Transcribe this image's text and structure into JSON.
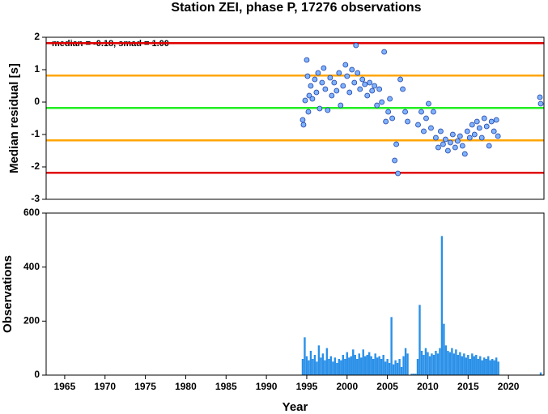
{
  "chart_data": [
    {
      "type": "scatter",
      "title": "Station ZEI, phase P, 17276 observations",
      "ylabel": "Median residual [s]",
      "annotation": "median = -0.18, smad = 1.00",
      "point_color": "#7fb2ff",
      "point_edge": "#1f3f9f",
      "xlim": [
        1962.7,
        2024.4
      ],
      "ylim": [
        -3,
        2
      ],
      "yticks": [
        -3,
        -2,
        -1,
        0,
        1,
        2
      ],
      "reference_lines": [
        {
          "value": 1.82,
          "color": "#e00000"
        },
        {
          "value": 0.82,
          "color": "#ffa500"
        },
        {
          "value": -0.18,
          "color": "#22ee22"
        },
        {
          "value": -1.18,
          "color": "#ffa500"
        },
        {
          "value": -2.18,
          "color": "#e00000"
        }
      ],
      "x": [
        1994.5,
        1994.6,
        1994.8,
        1995,
        1995.1,
        1995.2,
        1995.3,
        1995.5,
        1995.7,
        1996,
        1996.2,
        1996.4,
        1996.6,
        1996.9,
        1997.1,
        1997.3,
        1997.6,
        1997.9,
        1998.1,
        1998.4,
        1998.7,
        1999,
        1999.2,
        1999.5,
        1999.8,
        2000,
        2000.3,
        2000.6,
        2000.9,
        2001.1,
        2001.3,
        2001.6,
        2001.9,
        2002.2,
        2002.5,
        2002.8,
        2003.1,
        2003.4,
        2003.7,
        2004,
        2004.3,
        2004.6,
        2004.8,
        2005.1,
        2005.3,
        2005.6,
        2005.9,
        2006.1,
        2006.3,
        2006.6,
        2006.9,
        2007.2,
        2007.5,
        2008.8,
        2009.2,
        2009.5,
        2009.8,
        2010.1,
        2010.4,
        2010.7,
        2011,
        2011.3,
        2011.6,
        2011.9,
        2012.2,
        2012.5,
        2012.8,
        2013.1,
        2013.4,
        2013.7,
        2014,
        2014.3,
        2014.6,
        2014.9,
        2015.2,
        2015.5,
        2015.8,
        2016.1,
        2016.4,
        2016.7,
        2017,
        2017.3,
        2017.6,
        2017.9,
        2018.2,
        2018.5,
        2018.7,
        2023.9,
        2024
      ],
      "values": [
        -0.55,
        -0.7,
        0.05,
        1.3,
        0.8,
        -0.3,
        0.2,
        0.5,
        0.1,
        0.7,
        0.3,
        0.9,
        -0.2,
        0.6,
        1.05,
        0.4,
        -0.25,
        0.75,
        0.2,
        0.6,
        0.35,
        0.9,
        -0.1,
        0.5,
        1.15,
        0.8,
        0.3,
        1.0,
        0.6,
        1.75,
        0.9,
        0.4,
        0.7,
        0.55,
        0.2,
        0.6,
        0.35,
        0.5,
        -0.1,
        0.4,
        0.0,
        1.55,
        -0.6,
        -0.3,
        0.1,
        -0.5,
        -1.8,
        -1.3,
        -2.2,
        0.7,
        0.4,
        -0.3,
        -0.6,
        -0.7,
        -0.3,
        -0.9,
        -0.5,
        -0.05,
        -0.8,
        -0.3,
        -1.1,
        -1.4,
        -0.9,
        -1.3,
        -1.15,
        -1.5,
        -1.25,
        -1.0,
        -1.4,
        -1.2,
        -1.05,
        -1.35,
        -1.6,
        -0.9,
        -1.1,
        -0.7,
        -1.0,
        -0.6,
        -0.8,
        -1.1,
        -0.5,
        -0.75,
        -1.35,
        -0.6,
        -0.9,
        -0.55,
        -1.05,
        0.15,
        -0.05
      ]
    },
    {
      "type": "bar",
      "xlabel": "Year",
      "ylabel": "Observations",
      "color": "#2a90e8",
      "xlim": [
        1962.7,
        2024.4
      ],
      "xticks": [
        1965,
        1970,
        1975,
        1980,
        1985,
        1990,
        1995,
        2000,
        2005,
        2010,
        2015,
        2020
      ],
      "ylim": [
        0,
        600
      ],
      "yticks": [
        0,
        200,
        400,
        600
      ],
      "x": [
        1994.5,
        1994.75,
        1995,
        1995.25,
        1995.5,
        1995.75,
        1996,
        1996.25,
        1996.5,
        1996.75,
        1997,
        1997.25,
        1997.5,
        1997.75,
        1998,
        1998.25,
        1998.5,
        1998.75,
        1999,
        1999.25,
        1999.5,
        1999.75,
        2000,
        2000.25,
        2000.5,
        2000.75,
        2001,
        2001.25,
        2001.5,
        2001.75,
        2002,
        2002.25,
        2002.5,
        2002.75,
        2003,
        2003.25,
        2003.5,
        2003.75,
        2004,
        2004.25,
        2004.5,
        2004.75,
        2005,
        2005.25,
        2005.5,
        2005.75,
        2006,
        2006.25,
        2006.5,
        2006.75,
        2007,
        2007.25,
        2007.5,
        2008,
        2008.25,
        2008.5,
        2008.75,
        2009,
        2009.25,
        2009.5,
        2009.75,
        2010,
        2010.25,
        2010.5,
        2010.75,
        2011,
        2011.25,
        2011.5,
        2011.75,
        2012,
        2012.25,
        2012.5,
        2012.75,
        2013,
        2013.25,
        2013.5,
        2013.75,
        2014,
        2014.25,
        2014.5,
        2014.75,
        2015,
        2015.25,
        2015.5,
        2015.75,
        2016,
        2016.25,
        2016.5,
        2016.75,
        2017,
        2017.25,
        2017.5,
        2017.75,
        2018,
        2018.25,
        2018.5,
        2018.75,
        2024
      ],
      "values": [
        60,
        140,
        70,
        55,
        90,
        60,
        75,
        50,
        110,
        65,
        80,
        55,
        100,
        60,
        70,
        50,
        65,
        45,
        60,
        55,
        75,
        60,
        85,
        65,
        70,
        95,
        75,
        60,
        80,
        65,
        95,
        70,
        75,
        85,
        70,
        60,
        80,
        65,
        70,
        60,
        75,
        50,
        60,
        45,
        215,
        40,
        55,
        45,
        60,
        30,
        70,
        100,
        80,
        5,
        5,
        5,
        60,
        260,
        90,
        75,
        100,
        85,
        70,
        80,
        75,
        90,
        80,
        100,
        515,
        190,
        110,
        90,
        85,
        100,
        80,
        95,
        75,
        85,
        70,
        80,
        65,
        75,
        60,
        80,
        70,
        75,
        60,
        70,
        55,
        65,
        60,
        70,
        55,
        60,
        55,
        65,
        50,
        10
      ]
    }
  ]
}
